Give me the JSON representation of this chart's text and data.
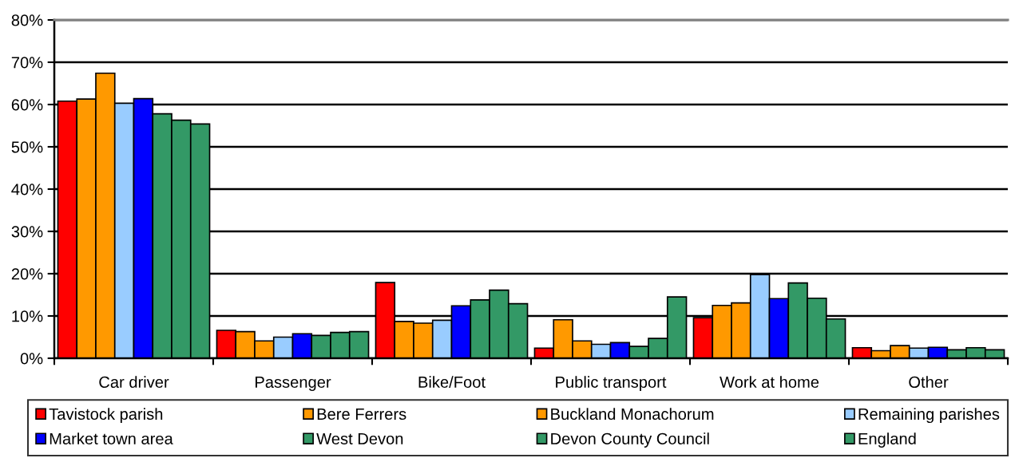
{
  "chart_data": {
    "type": "bar",
    "categories": [
      "Car driver",
      "Passenger",
      "Bike/Foot",
      "Public transport",
      "Work at home",
      "Other"
    ],
    "series": [
      {
        "name": "Tavistock parish",
        "color": "#ff0000",
        "values": [
          60.8,
          6.6,
          17.9,
          2.4,
          9.6,
          2.5
        ]
      },
      {
        "name": "Bere Ferrers",
        "color": "#ff9900",
        "values": [
          61.3,
          6.3,
          8.7,
          9.1,
          12.5,
          1.8
        ]
      },
      {
        "name": "Buckland Monachorum",
        "color": "#ff9900",
        "values": [
          67.4,
          4.1,
          8.3,
          4.1,
          13.1,
          3.0
        ]
      },
      {
        "name": "Remaining parishes",
        "color": "#99ccff",
        "values": [
          60.3,
          5.0,
          9.0,
          3.3,
          19.8,
          2.4
        ]
      },
      {
        "name": "Market town area",
        "color": "#0000ff",
        "values": [
          61.4,
          5.8,
          12.4,
          3.7,
          14.1,
          2.6
        ]
      },
      {
        "name": "West Devon",
        "color": "#339966",
        "values": [
          57.8,
          5.4,
          13.8,
          2.8,
          17.8,
          2.0
        ]
      },
      {
        "name": "Devon County Council",
        "color": "#339966",
        "values": [
          56.3,
          6.1,
          16.1,
          4.7,
          14.2,
          2.5
        ]
      },
      {
        "name": "England",
        "color": "#339966",
        "values": [
          55.4,
          6.3,
          12.9,
          14.5,
          9.3,
          2.0
        ]
      }
    ],
    "ylim": [
      0,
      80
    ],
    "yticks": [
      {
        "value": 0,
        "label": "0%"
      },
      {
        "value": 10,
        "label": "10%"
      },
      {
        "value": 20,
        "label": "20%"
      },
      {
        "value": 30,
        "label": "30%"
      },
      {
        "value": 40,
        "label": "40%"
      },
      {
        "value": 50,
        "label": "50%"
      },
      {
        "value": 60,
        "label": "60%"
      },
      {
        "value": 70,
        "label": "70%"
      },
      {
        "value": 80,
        "label": "80%"
      }
    ],
    "grid": "y",
    "legend": "bottom"
  }
}
